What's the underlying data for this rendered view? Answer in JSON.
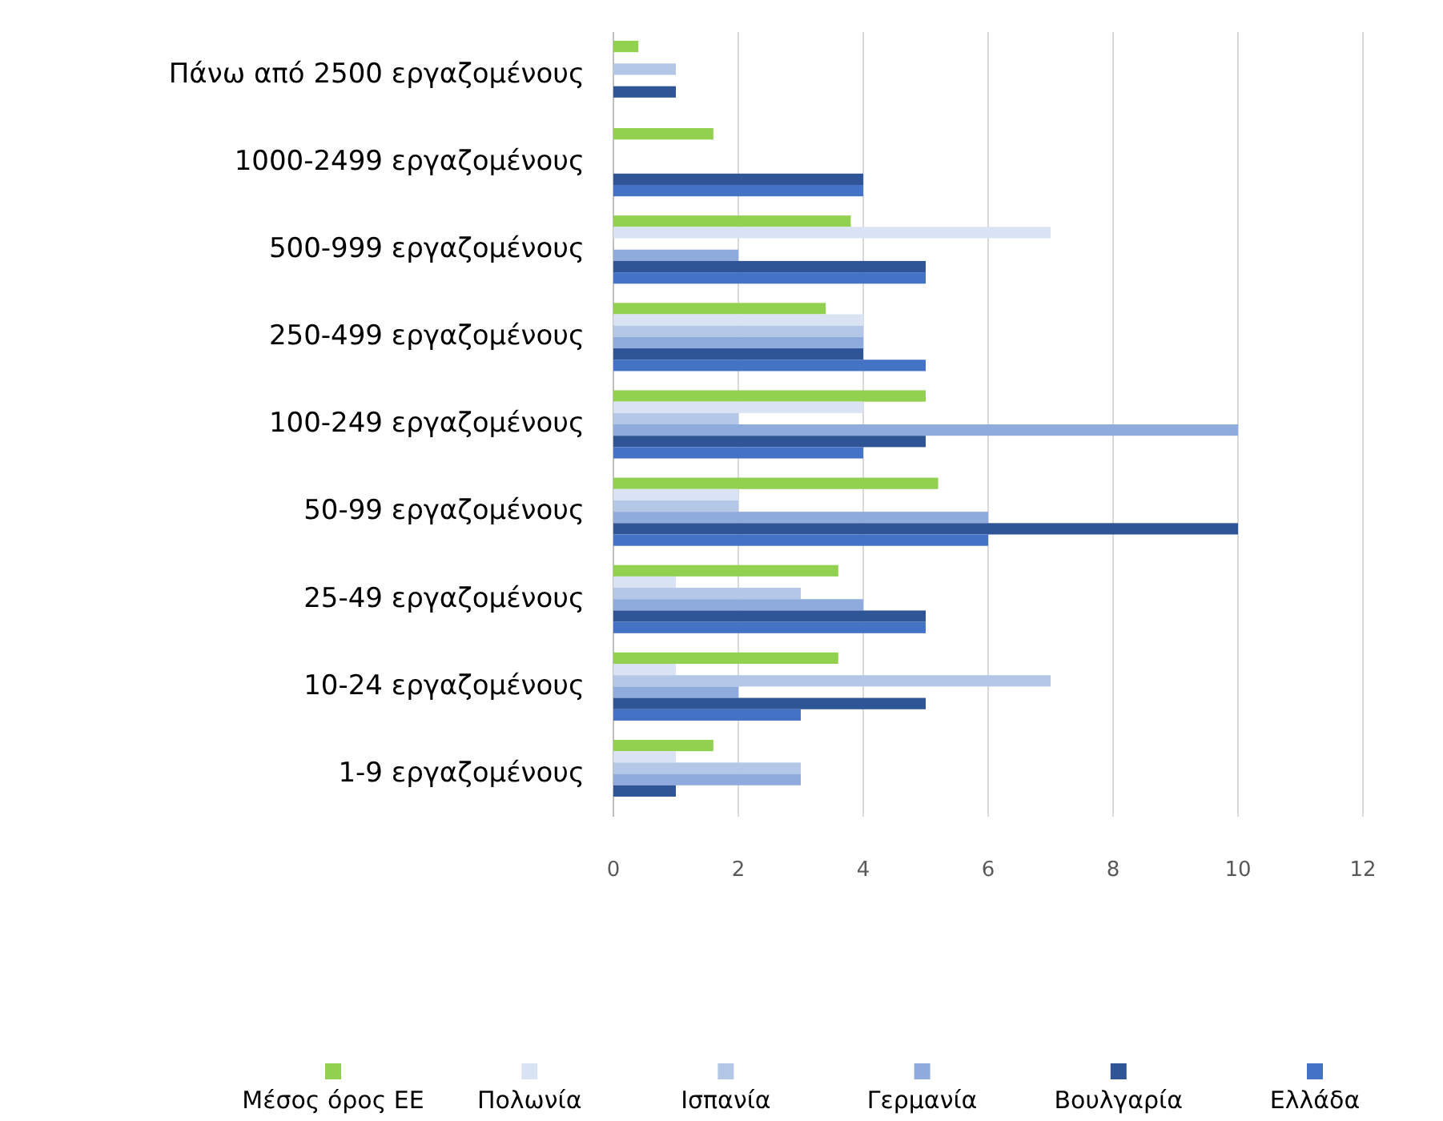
{
  "chart_data": {
    "type": "bar",
    "orientation": "horizontal",
    "categories": [
      "Πάνω από 2500 εργαζομένους",
      "1000-2499 εργαζομένους",
      "500-999 εργαζομένους",
      "250-499 εργαζομένους",
      "100-249 εργαζομένους",
      "50-99 εργαζομένους",
      "25-49 εργαζομένους",
      "10-24 εργαζομένους",
      "1-9 εργαζομένους"
    ],
    "series": [
      {
        "name": "Μέσος όρος ΕΕ",
        "color": "#92d050",
        "values": [
          0.4,
          1.6,
          3.8,
          3.4,
          5,
          5.2,
          3.6,
          3.6,
          1.6
        ]
      },
      {
        "name": "Πολωνία",
        "color": "#dae3f3",
        "values": [
          0,
          0,
          7,
          4,
          4,
          2,
          1,
          1,
          1
        ]
      },
      {
        "name": "Ισπανία",
        "color": "#b4c7e7",
        "values": [
          1,
          0,
          0,
          4,
          2,
          2,
          3,
          7,
          3
        ]
      },
      {
        "name": "Γερμανία",
        "color": "#8faadc",
        "values": [
          0,
          0,
          2,
          4,
          10,
          6,
          4,
          2,
          3
        ]
      },
      {
        "name": "Βουλγαρία",
        "color": "#2f5597",
        "values": [
          1,
          4,
          5,
          4,
          5,
          10,
          5,
          5,
          1
        ]
      },
      {
        "name": "Ελλάδα",
        "color": "#4472c4",
        "values": [
          0,
          4,
          5,
          5,
          4,
          6,
          5,
          3,
          0
        ]
      }
    ],
    "xlim": [
      0,
      12
    ],
    "xticks": [
      0,
      2,
      4,
      6,
      8,
      10,
      12
    ],
    "grid": "x",
    "legend": "bottom"
  }
}
